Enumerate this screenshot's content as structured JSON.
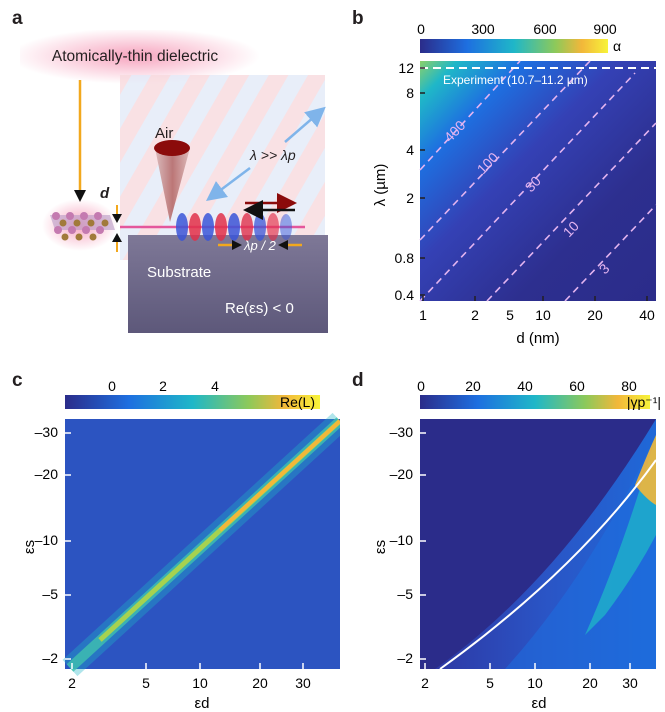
{
  "panels": {
    "a": {
      "letter": "a",
      "title": "Atomically-thin dielectric",
      "air": "Air",
      "wavelength_relation": "λ >> λp",
      "thickness_symbol": "d",
      "substrate": "Substrate",
      "half_wavelength": "λp / 2",
      "condition": "Re(εs) < 0"
    },
    "b": {
      "letter": "b",
      "colorbar_label": "α",
      "colorbar_ticks": [
        "0",
        "300",
        "600",
        "900"
      ],
      "experiment_label": "Experiment (10.7–11.2 µm)",
      "xlabel": "d (nm)",
      "ylabel": "λ (µm)",
      "xticks": [
        "1",
        "2",
        "5",
        "10",
        "20",
        "40"
      ],
      "yticks": [
        "0.4",
        "0.8",
        "2",
        "4",
        "8",
        "12"
      ],
      "contours": [
        "400",
        "100",
        "30",
        "10",
        "3"
      ]
    },
    "c": {
      "letter": "c",
      "colorbar_label": "Re(L)",
      "colorbar_ticks": [
        "0",
        "2",
        "4"
      ],
      "xlabel": "εd",
      "ylabel": "εs",
      "xticks": [
        "2",
        "5",
        "10",
        "20",
        "30"
      ],
      "yticks": [
        "–30",
        "–20",
        "–10",
        "–5",
        "–2"
      ]
    },
    "d": {
      "letter": "d",
      "colorbar_label": "|γp⁻¹|",
      "colorbar_ticks": [
        "0",
        "20",
        "40",
        "60",
        "80"
      ],
      "xlabel": "εd",
      "ylabel": "εs",
      "xticks": [
        "2",
        "5",
        "10",
        "20",
        "30"
      ],
      "yticks": [
        "–30",
        "–20",
        "–10",
        "–5",
        "–2"
      ]
    }
  },
  "colors": {
    "cmap_dark": "#2b2c8a",
    "cmap_blue": "#1e6fe0",
    "cmap_cyan": "#1fb7c8",
    "cmap_yellow": "#f7e43a",
    "orange_arrow": "#f2a81d",
    "dark_red": "#8b0b0b"
  }
}
